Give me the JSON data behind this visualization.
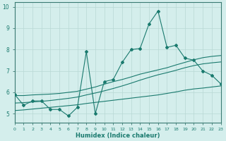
{
  "xlabel": "Humidex (Indice chaleur)",
  "x": [
    0,
    1,
    2,
    3,
    4,
    5,
    6,
    7,
    8,
    9,
    10,
    11,
    12,
    13,
    14,
    15,
    16,
    17,
    18,
    19,
    20,
    21,
    22,
    23
  ],
  "y_main": [
    5.9,
    5.4,
    5.6,
    5.6,
    5.2,
    5.2,
    4.9,
    5.3,
    7.9,
    5.0,
    6.5,
    6.6,
    7.4,
    8.0,
    8.05,
    9.2,
    9.8,
    8.1,
    8.2,
    7.6,
    7.5,
    7.0,
    6.8,
    6.4
  ],
  "y_line1": [
    5.85,
    5.85,
    5.88,
    5.9,
    5.92,
    5.95,
    6.0,
    6.05,
    6.15,
    6.25,
    6.38,
    6.5,
    6.6,
    6.72,
    6.85,
    6.95,
    7.05,
    7.15,
    7.28,
    7.4,
    7.52,
    7.62,
    7.68,
    7.72
  ],
  "y_line2": [
    5.5,
    5.52,
    5.55,
    5.58,
    5.62,
    5.67,
    5.72,
    5.78,
    5.88,
    5.97,
    6.07,
    6.18,
    6.3,
    6.43,
    6.57,
    6.7,
    6.82,
    6.92,
    7.03,
    7.15,
    7.25,
    7.33,
    7.38,
    7.42
  ],
  "y_line3": [
    5.15,
    5.18,
    5.22,
    5.26,
    5.3,
    5.34,
    5.38,
    5.42,
    5.48,
    5.53,
    5.58,
    5.63,
    5.68,
    5.73,
    5.78,
    5.83,
    5.88,
    5.95,
    6.02,
    6.1,
    6.16,
    6.2,
    6.25,
    6.3
  ],
  "line_color": "#1a7a6e",
  "bg_color": "#d4eeec",
  "grid_color": "#b8d8d5",
  "ylim": [
    4.6,
    10.2
  ],
  "xlim": [
    0,
    23
  ],
  "yticks": [
    5,
    6,
    7,
    8,
    9,
    10
  ]
}
